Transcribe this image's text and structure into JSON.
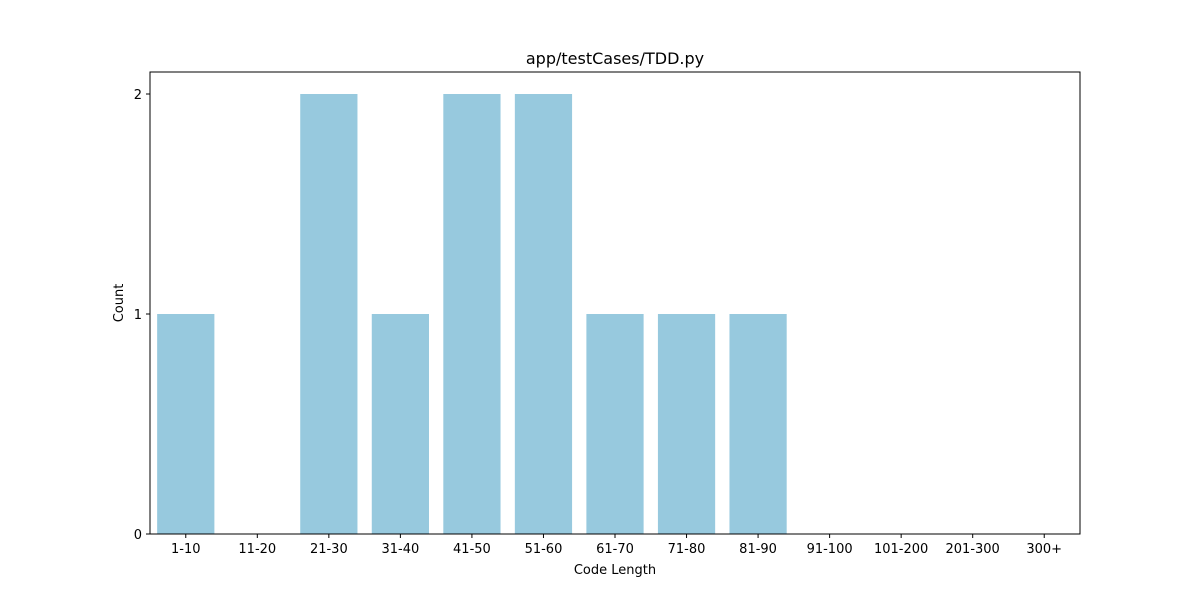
{
  "chart_data": {
    "type": "bar",
    "title": "app/testCases/TDD.py",
    "xlabel": "Code Length",
    "ylabel": "Count",
    "categories": [
      "1-10",
      "11-20",
      "21-30",
      "31-40",
      "41-50",
      "51-60",
      "61-70",
      "71-80",
      "81-90",
      "91-100",
      "101-200",
      "201-300",
      "300+"
    ],
    "values": [
      1,
      0,
      2,
      1,
      2,
      2,
      1,
      1,
      1,
      0,
      0,
      0,
      0
    ],
    "ylim": [
      0,
      2.1
    ],
    "yticks": [
      0,
      1,
      2
    ],
    "bar_color": "#97c9de",
    "grid": false,
    "legend": "none"
  }
}
